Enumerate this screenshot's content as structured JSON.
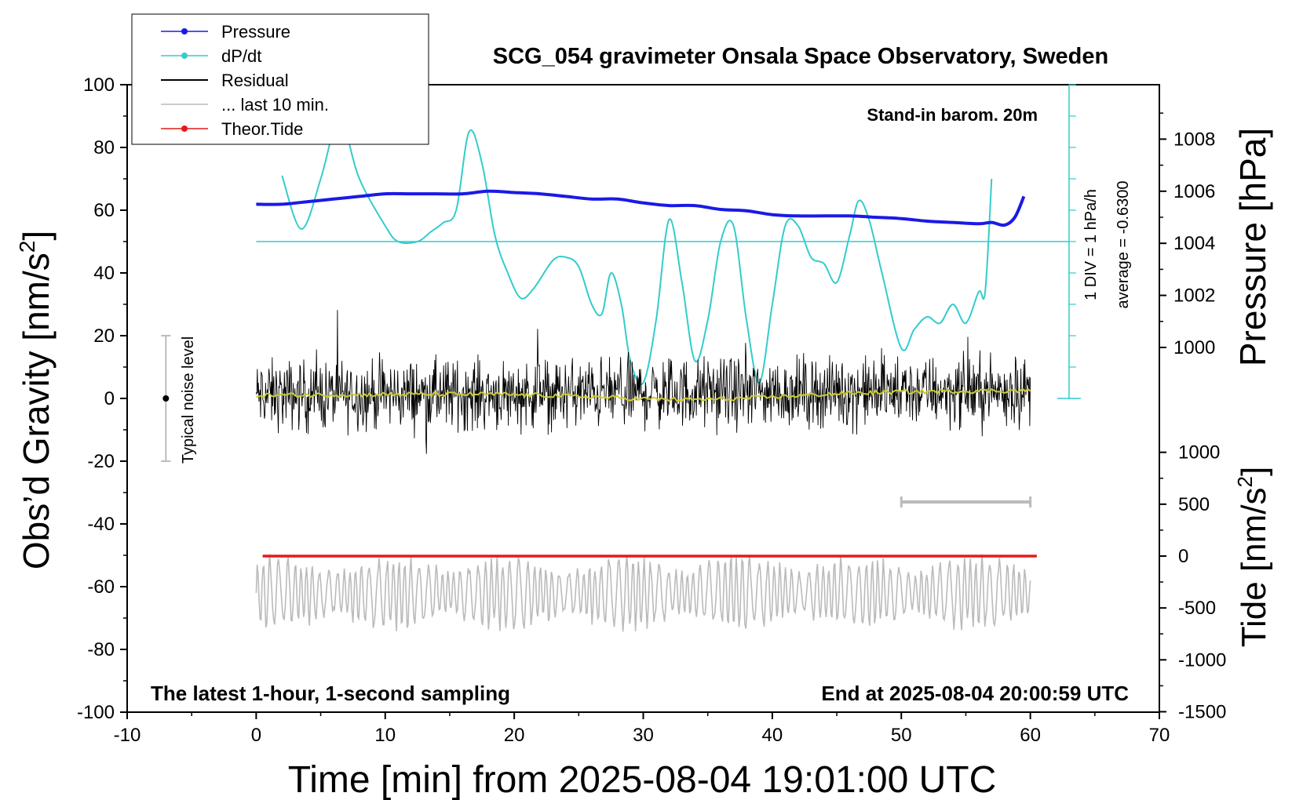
{
  "chart_data": {
    "type": "line",
    "title": "SCG_054 gravimeter Onsala Space Observatory, Sweden",
    "xlabel": "Time [min] from 2025-08-04 19:01:00 UTC",
    "ylabel_main": "Obs’d Gravity [nm/s",
    "ylabel_main_sup": "2",
    "ylabel_main_end": "]",
    "ylabel_pressure": "Pressure [hPa]",
    "ylabel_tide": "Tide [nm/s",
    "ylabel_tide_sup": "2",
    "ylabel_tide_end": "]",
    "xlim": [
      -10,
      70
    ],
    "ylim": [
      -100,
      100
    ],
    "x_ticks": [
      "-10",
      "0",
      "10",
      "20",
      "30",
      "40",
      "50",
      "60",
      "70"
    ],
    "y_ticks": [
      "-100",
      "-80",
      "-60",
      "-40",
      "-20",
      "0",
      "20",
      "40",
      "60",
      "80",
      "100"
    ],
    "pressure_ticks": [
      "1000",
      "1002",
      "1004",
      "1006",
      "1008"
    ],
    "tide_ticks": [
      "-1500",
      "-1000",
      "-500",
      "0",
      "500",
      "1000"
    ],
    "legend": {
      "position": "top-left",
      "entries": [
        {
          "label": "Pressure",
          "color": "#1a1ae6",
          "marker": "dot"
        },
        {
          "label": "dP/dt",
          "color": "#33cccc",
          "marker": "dot"
        },
        {
          "label": "Residual",
          "color": "#000000",
          "marker": "none"
        },
        {
          "label": "... last 10 min.",
          "color": "#bbbbbb",
          "marker": "none"
        },
        {
          "label": "Theor.Tide",
          "color": "#e61a1a",
          "marker": "dot"
        }
      ]
    },
    "annotations": {
      "stand_in": "Stand-in barom. 20m",
      "div_note": "1 DIV = 1 hPa/h",
      "average_note": "average = -0.6300",
      "noise_label": "Typical noise level",
      "bottom_left": "The latest 1-hour, 1-second sampling",
      "bottom_right": "End at 2025-08-04 20:00:59 UTC"
    },
    "noise_bar": {
      "x": -7,
      "center": 0,
      "low": -20,
      "high": 20
    },
    "ten_min_bar": {
      "x0": 50,
      "x1": 60,
      "y": -33
    },
    "pressure_series": {
      "name": "Pressure",
      "unit": "hPa",
      "x": [
        0,
        2,
        4,
        6,
        8,
        10,
        12,
        14,
        16,
        18,
        20,
        22,
        24,
        26,
        28,
        30,
        32,
        34,
        36,
        38,
        40,
        42,
        44,
        46,
        48,
        50,
        52,
        54,
        56,
        57,
        58,
        58.8,
        59.5
      ],
      "values": [
        1005.5,
        1005.5,
        1005.6,
        1005.7,
        1005.8,
        1005.9,
        1005.9,
        1005.9,
        1005.9,
        1006.0,
        1005.95,
        1005.9,
        1005.8,
        1005.7,
        1005.7,
        1005.55,
        1005.45,
        1005.45,
        1005.3,
        1005.25,
        1005.1,
        1005.05,
        1005.05,
        1005.05,
        1005.0,
        1004.95,
        1004.85,
        1004.8,
        1004.75,
        1004.8,
        1004.7,
        1005.0,
        1005.8
      ]
    },
    "dpdt_series": {
      "name": "dP/dt",
      "unit": "nm/s2 plot units",
      "baseline": 50,
      "x": [
        2,
        3.5,
        5,
        6.2,
        7,
        8,
        10,
        11,
        12.5,
        13.5,
        14.5,
        15.5,
        16.5,
        17.5,
        18.5,
        19.5,
        20.5,
        21.5,
        23,
        24,
        25,
        26,
        26.8,
        27.5,
        28.3,
        29,
        30,
        31,
        32,
        33,
        34,
        35,
        36,
        37,
        38,
        39,
        40,
        41,
        42,
        43,
        44,
        45,
        46,
        46.7,
        47.5,
        48.5,
        50,
        51,
        52,
        53,
        54,
        55,
        56,
        56.5,
        57
      ],
      "values": [
        71,
        54,
        70,
        88,
        84,
        70,
        55,
        50,
        50,
        53,
        56,
        60,
        85,
        75,
        52,
        40,
        32,
        35,
        44,
        45,
        42,
        30,
        27,
        40,
        30,
        12,
        5,
        25,
        57,
        37,
        12,
        25,
        50,
        55,
        25,
        5,
        30,
        55,
        55,
        45,
        43,
        37,
        52,
        63,
        57,
        40,
        16,
        22,
        26,
        24,
        30,
        24,
        34,
        34,
        70
      ]
    },
    "residual_series": {
      "name": "Residual",
      "x_range": [
        0,
        60
      ],
      "envelope": 12,
      "mean_trend_start": 1,
      "mean_trend_end": 2.5
    },
    "last10_series": {
      "name": "... last 10 min.",
      "center": -62,
      "amplitude": 10
    },
    "tide_series": {
      "name": "Theor.Tide",
      "x": [
        0.5,
        60.5
      ],
      "values": [
        0,
        0
      ],
      "unit": "nm/s2"
    }
  }
}
